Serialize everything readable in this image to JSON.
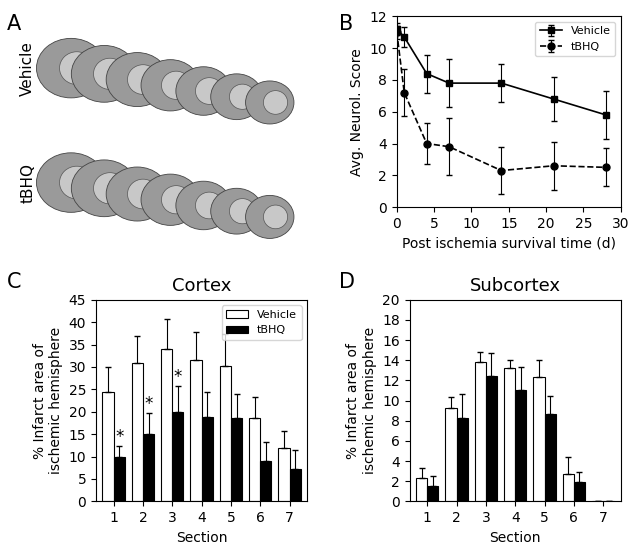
{
  "chart_data": [
    {
      "type": "image",
      "panel": "A",
      "row_labels": [
        "Vehicle",
        "tBHQ"
      ]
    },
    {
      "type": "line",
      "panel": "B",
      "x_label": "Post ischemia survival time (d)",
      "y_label": "Avg. Neurol. Score",
      "x": [
        0,
        1,
        4,
        7,
        14,
        21,
        28
      ],
      "xlim": [
        0,
        30
      ],
      "xticks": [
        0,
        5,
        10,
        15,
        20,
        25,
        30
      ],
      "ylim": [
        0,
        12
      ],
      "yticks": [
        0,
        2,
        4,
        6,
        8,
        10,
        12
      ],
      "legend": "upper right",
      "series": [
        {
          "name": "Vehicle",
          "color": "#000000",
          "marker": "square",
          "line_style": "solid",
          "values": [
            11.2,
            10.7,
            8.4,
            7.8,
            7.8,
            6.8,
            5.8
          ],
          "errors": [
            0.4,
            0.6,
            1.2,
            1.5,
            1.2,
            1.4,
            1.5
          ]
        },
        {
          "name": "tBHQ",
          "color": "#000000",
          "marker": "circle",
          "line_style": "dashed",
          "values": [
            11.0,
            7.2,
            4.0,
            3.8,
            2.3,
            2.6,
            2.5
          ],
          "errors": [
            0.4,
            1.5,
            1.3,
            1.8,
            1.5,
            1.5,
            1.2
          ]
        }
      ]
    },
    {
      "type": "bar",
      "panel": "C",
      "title": "Cortex",
      "x_label": "Section",
      "y_label": "% Infarct area of\nischemic hemisphere",
      "categories": [
        "1",
        "2",
        "3",
        "4",
        "5",
        "6",
        "7"
      ],
      "ylim": [
        0,
        45
      ],
      "yticks": [
        0,
        5,
        10,
        15,
        20,
        25,
        30,
        35,
        40,
        45
      ],
      "legend": "upper right",
      "series": [
        {
          "name": "Vehicle",
          "color": "#ffffff",
          "values": [
            24.5,
            30.8,
            34.0,
            31.5,
            30.2,
            18.5,
            12.0
          ],
          "errors": [
            5.5,
            6.2,
            6.8,
            6.2,
            7.2,
            4.7,
            3.8
          ]
        },
        {
          "name": "tBHQ",
          "color": "#000000",
          "values": [
            9.8,
            15.0,
            20.0,
            18.8,
            18.5,
            9.0,
            7.2
          ],
          "errors": [
            2.5,
            4.8,
            5.7,
            5.7,
            5.5,
            4.3,
            4.3
          ]
        }
      ],
      "annotations": [
        {
          "category": "1",
          "series": "tBHQ",
          "text": "*"
        },
        {
          "category": "2",
          "series": "tBHQ",
          "text": "*"
        },
        {
          "category": "3",
          "series": "tBHQ",
          "text": "*"
        }
      ]
    },
    {
      "type": "bar",
      "panel": "D",
      "title": "Subcortex",
      "x_label": "Section",
      "y_label": "% Infarct area of\nischemic hemisphere",
      "categories": [
        "1",
        "2",
        "3",
        "4",
        "5",
        "6",
        "7"
      ],
      "ylim": [
        0,
        20
      ],
      "yticks": [
        0,
        2,
        4,
        6,
        8,
        10,
        12,
        14,
        16,
        18,
        20
      ],
      "series": [
        {
          "name": "Vehicle",
          "color": "#ffffff",
          "values": [
            2.3,
            9.3,
            13.8,
            13.2,
            12.3,
            2.7,
            0
          ],
          "errors": [
            1.0,
            1.1,
            1.0,
            0.8,
            1.7,
            1.7,
            0
          ]
        },
        {
          "name": "tBHQ",
          "color": "#000000",
          "values": [
            1.5,
            8.3,
            12.4,
            11.0,
            8.7,
            1.9,
            0
          ],
          "errors": [
            1.0,
            2.4,
            2.3,
            2.3,
            1.8,
            1.0,
            0
          ]
        }
      ]
    }
  ]
}
